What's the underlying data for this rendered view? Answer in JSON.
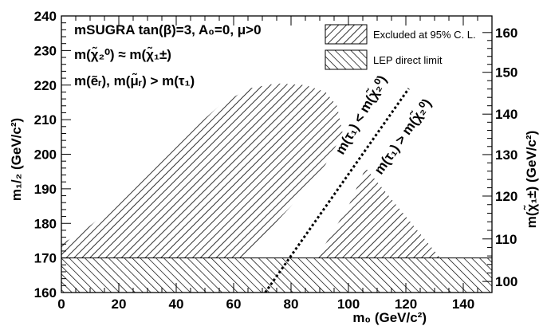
{
  "chart_data": {
    "type": "area",
    "xlabel": "m₀ (GeV/c²)",
    "ylabel": "m₁/₂ (GeV/c²)",
    "y2label": "m(χ̃₁±) (GeV/c²)",
    "xlim": [
      0,
      150
    ],
    "ylim": [
      160,
      240
    ],
    "xticks": [
      "0",
      "20",
      "40",
      "60",
      "80",
      "100",
      "120",
      "140"
    ],
    "yticks": [
      "160",
      "170",
      "180",
      "190",
      "200",
      "210",
      "220",
      "230",
      "240"
    ],
    "y2ticks": [
      "100",
      "110",
      "120",
      "130",
      "140",
      "150",
      "160"
    ],
    "y2_tick_positions_m12": [
      163.2,
      175.5,
      187.9,
      199.9,
      211.6,
      223.7,
      235.2
    ],
    "annotations": [
      "mSUGRA tan(β)=3, A₀=0, μ>0",
      "m(χ̃₂⁰) ≈ m(χ̃₁±)",
      "m(ẽᵣ), m(μ̃ᵣ) > m(τ₁)",
      "m(τ₁) < m(χ̃₂⁰)",
      "m(τ₁) > m(χ̃₂⁰)"
    ],
    "legend": {
      "placement": "top-right",
      "entries": [
        {
          "label": "Excluded at 95% C. L.",
          "hatch": "diagonal-up"
        },
        {
          "label": "LEP direct limit",
          "hatch": "diagonal-down"
        }
      ]
    },
    "regions": [
      {
        "label": "Excluded at 95% C. L.",
        "polygon": [
          [
            0,
            174
          ],
          [
            8,
            178
          ],
          [
            20,
            186
          ],
          [
            40,
            203
          ],
          [
            55,
            214
          ],
          [
            65,
            219
          ],
          [
            75,
            220.5
          ],
          [
            85,
            220
          ],
          [
            92,
            218
          ],
          [
            96,
            214
          ],
          [
            98,
            206
          ],
          [
            92,
            197
          ],
          [
            80,
            185
          ],
          [
            70,
            176
          ],
          [
            64,
            170
          ],
          [
            0,
            170
          ]
        ]
      },
      {
        "label": "Excluded at 95% C. L.",
        "polygon": [
          [
            89,
            170
          ],
          [
            100,
            185
          ],
          [
            106,
            196
          ],
          [
            109,
            193
          ],
          [
            118,
            184
          ],
          [
            126,
            176
          ],
          [
            132,
            170
          ]
        ]
      },
      {
        "label": "LEP direct limit",
        "polygon": [
          [
            0,
            160
          ],
          [
            150,
            160
          ],
          [
            150,
            170
          ],
          [
            0,
            170
          ]
        ]
      }
    ],
    "boundary_line": {
      "style": "dotted",
      "points": [
        [
          71,
          160
        ],
        [
          121,
          219
        ]
      ]
    }
  }
}
